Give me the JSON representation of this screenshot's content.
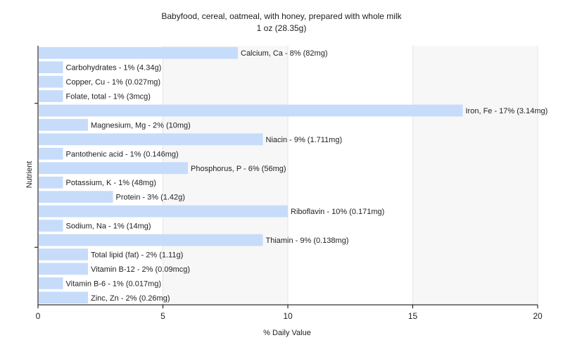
{
  "chart_data": {
    "type": "bar",
    "orientation": "horizontal",
    "title": "Babyfood, cereal, oatmeal, with honey, prepared with whole milk",
    "subtitle": "1 oz (28.35g)",
    "xlabel": "% Daily Value",
    "ylabel": "Nutrient",
    "xlim": [
      0,
      20
    ],
    "xticks": [
      0,
      5,
      10,
      15,
      20
    ],
    "grid": true,
    "bar_color": "#c6dcfa",
    "categories": [
      "Calcium, Ca",
      "Carbohydrates",
      "Copper, Cu",
      "Folate, total",
      "Iron, Fe",
      "Magnesium, Mg",
      "Niacin",
      "Pantothenic acid",
      "Phosphorus, P",
      "Potassium, K",
      "Protein",
      "Riboflavin",
      "Sodium, Na",
      "Thiamin",
      "Total lipid (fat)",
      "Vitamin B-12",
      "Vitamin B-6",
      "Zinc, Zn"
    ],
    "values": [
      8,
      1,
      1,
      1,
      17,
      2,
      9,
      1,
      6,
      1,
      3,
      10,
      1,
      9,
      2,
      2,
      1,
      2
    ],
    "labels": [
      "Calcium, Ca - 8% (82mg)",
      "Carbohydrates - 1% (4.34g)",
      "Copper, Cu - 1% (0.027mg)",
      "Folate, total - 1% (3mcg)",
      "Iron, Fe - 17% (3.14mg)",
      "Magnesium, Mg - 2% (10mg)",
      "Niacin - 9% (1.711mg)",
      "Pantothenic acid - 1% (0.146mg)",
      "Phosphorus, P - 6% (56mg)",
      "Potassium, K - 1% (48mg)",
      "Protein - 3% (1.42g)",
      "Riboflavin - 10% (0.171mg)",
      "Sodium, Na - 1% (14mg)",
      "Thiamin - 9% (0.138mg)",
      "Total lipid (fat) - 2% (1.11g)",
      "Vitamin B-12 - 2% (0.09mcg)",
      "Vitamin B-6 - 1% (0.017mg)",
      "Zinc, Zn - 2% (0.26mg)"
    ]
  }
}
